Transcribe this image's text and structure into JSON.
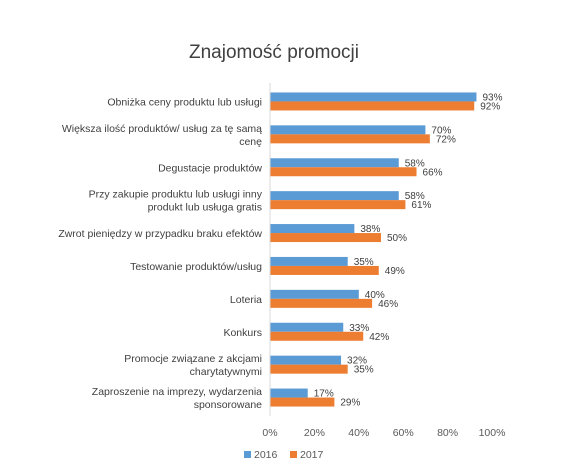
{
  "chart_data": {
    "type": "bar",
    "orientation": "horizontal",
    "title": "Znajomość promocji",
    "categories": [
      [
        "Obniżka ceny produktu lub usługi"
      ],
      [
        "Większa ilość produktów/ usług za tę samą",
        "cenę"
      ],
      [
        "Degustacje produktów"
      ],
      [
        "Przy zakupie produktu lub usługi inny",
        "produkt lub usługa gratis"
      ],
      [
        "Zwrot pieniędzy w przypadku braku efektów"
      ],
      [
        "Testowanie produktów/usług"
      ],
      [
        "Loteria"
      ],
      [
        "Konkurs"
      ],
      [
        "Promocje związane z akcjami",
        "charytatywnymi"
      ],
      [
        "Zaproszenie na imprezy, wydarzenia",
        "sponsorowane"
      ]
    ],
    "series": [
      {
        "name": "2016",
        "color": "#5B9BD5",
        "values": [
          93,
          70,
          58,
          58,
          38,
          35,
          40,
          33,
          32,
          17
        ]
      },
      {
        "name": "2017",
        "color": "#ED7D31",
        "values": [
          92,
          72,
          66,
          61,
          50,
          49,
          46,
          42,
          35,
          29
        ]
      }
    ],
    "xlim": [
      0,
      100
    ],
    "xticks": [
      "0%",
      "20%",
      "40%",
      "60%",
      "80%",
      "100%"
    ],
    "value_suffix": "%",
    "grid": false,
    "legend": "bottom"
  }
}
